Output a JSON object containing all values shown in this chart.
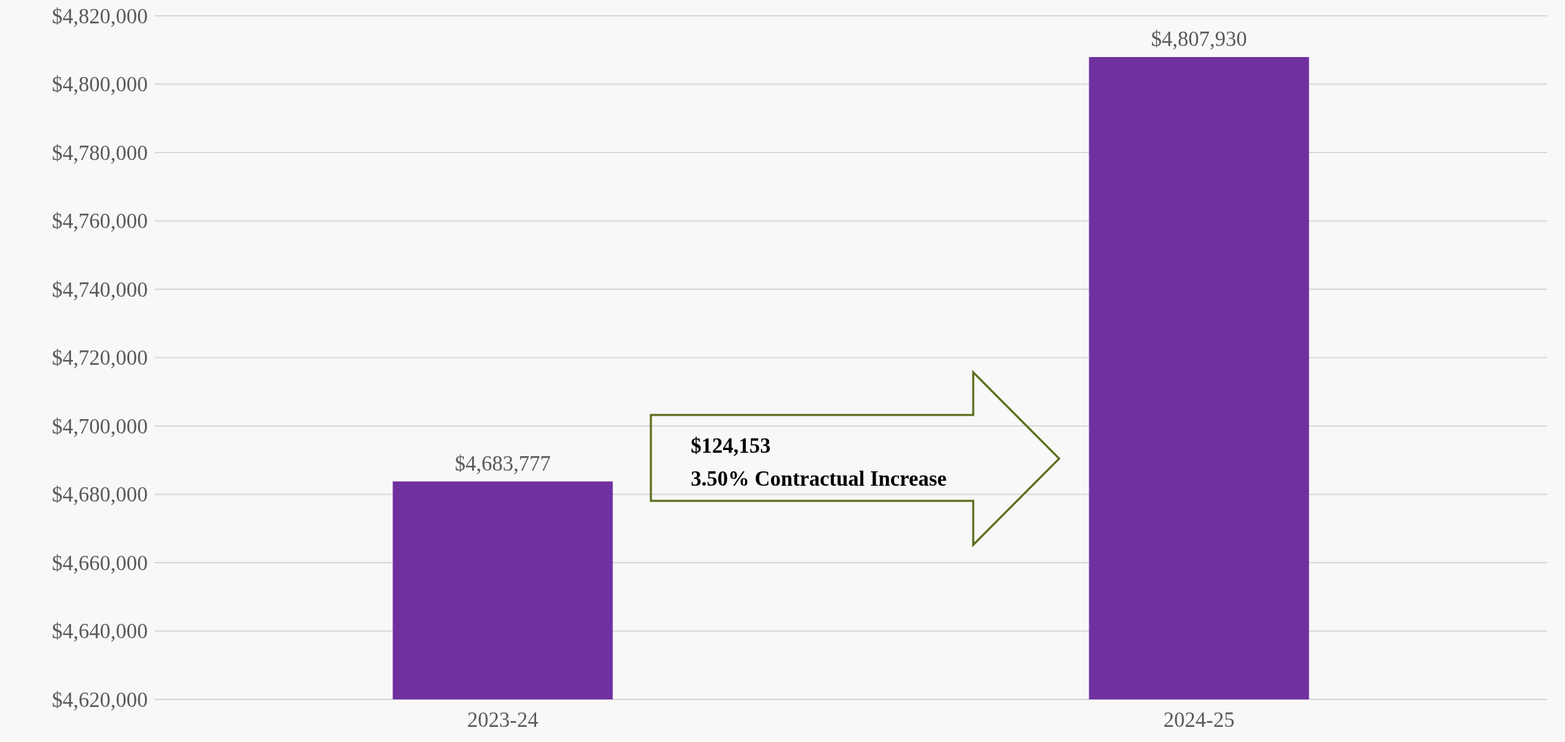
{
  "chart_data": {
    "type": "bar",
    "categories": [
      "2023-24",
      "2024-25"
    ],
    "values": [
      4683777,
      4807930
    ],
    "value_labels": [
      "$4,683,777",
      "$4,807,930"
    ],
    "color": "#7030a0",
    "ylim": [
      4620000,
      4820000
    ],
    "yticks": [
      {
        "value": 4620000,
        "label": "$4,620,000"
      },
      {
        "value": 4640000,
        "label": "$4,640,000"
      },
      {
        "value": 4660000,
        "label": "$4,660,000"
      },
      {
        "value": 4680000,
        "label": "$4,680,000"
      },
      {
        "value": 4700000,
        "label": "$4,700,000"
      },
      {
        "value": 4720000,
        "label": "$4,720,000"
      },
      {
        "value": 4740000,
        "label": "$4,740,000"
      },
      {
        "value": 4760000,
        "label": "$4,760,000"
      },
      {
        "value": 4780000,
        "label": "$4,780,000"
      },
      {
        "value": 4800000,
        "label": "$4,800,000"
      },
      {
        "value": 4820000,
        "label": "$4,820,000"
      }
    ],
    "grid": true,
    "annotations": [
      "$124,153",
      "3.50% Contractual Increase"
    ]
  }
}
